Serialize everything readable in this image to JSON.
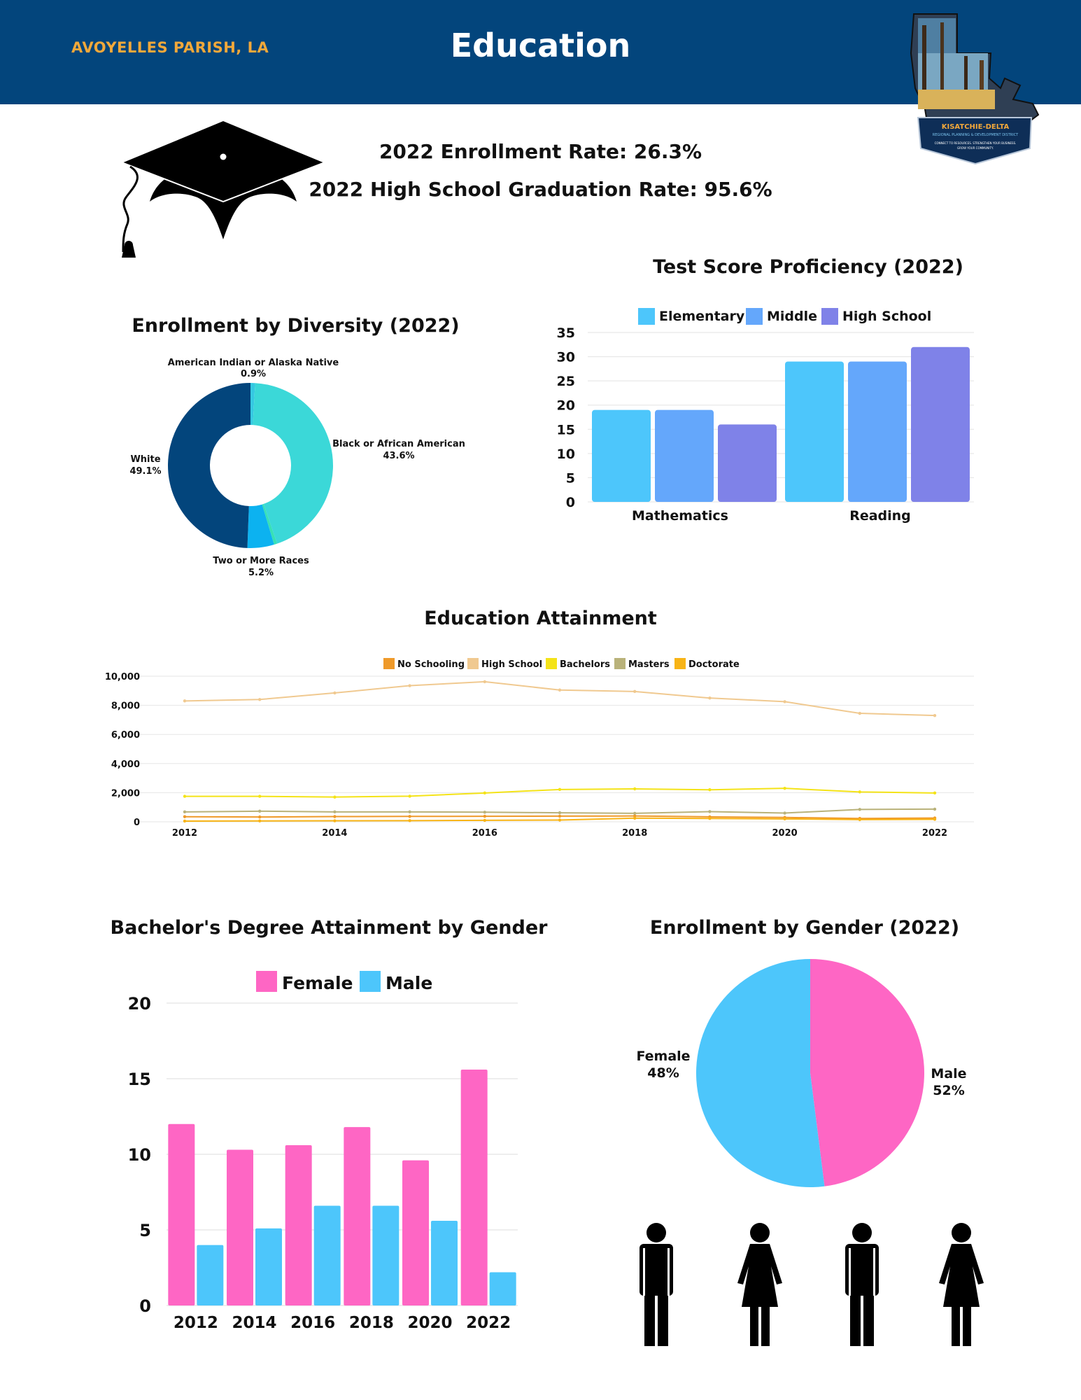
{
  "header": {
    "parish": "AVOYELLES PARISH, LA",
    "title": "Education"
  },
  "logo": {
    "line1": "KISATCHIE-DELTA",
    "line2": "REGIONAL PLANNING & DEVELOPMENT DISTRICT",
    "line3": "CONNECT TO RESOURCES. STRENGTHEN YOUR BUSINESS.",
    "line4": "GROW YOUR COMMUNITY."
  },
  "stats": {
    "enrollment": "2022 Enrollment Rate: 26.3%",
    "graduation": "2022 High School Graduation Rate: 95.6%"
  },
  "icons": {
    "cap": "graduation-cap-icon",
    "male": "male-person-icon",
    "female": "female-person-icon"
  },
  "chart_data": [
    {
      "id": "diversity",
      "type": "pie",
      "title": "Enrollment by Diversity (2022)",
      "slices": [
        {
          "label": "American Indian or Alaska Native",
          "pct_label": "0.9%",
          "value": 0.9,
          "color": "#35c9e2"
        },
        {
          "label": "Black or African American",
          "pct_label": "43.6%",
          "value": 43.6,
          "color": "#3bd8d8"
        },
        {
          "label": "",
          "pct_label": "",
          "value": 0.6,
          "color": "#37e0b6"
        },
        {
          "label": "Two or More Races",
          "pct_label": "5.2%",
          "value": 5.2,
          "color": "#0cb2f0"
        },
        {
          "label": "White",
          "pct_label": "49.1%",
          "value": 49.1,
          "color": "#03457c"
        }
      ]
    },
    {
      "id": "testscore",
      "type": "bar",
      "title": "Test Score Proficiency (2022)",
      "categories": [
        "Mathematics",
        "Reading"
      ],
      "series": [
        {
          "name": "Elementary",
          "values": [
            19,
            29
          ],
          "color": "#4dc6fb"
        },
        {
          "name": "Middle",
          "values": [
            19,
            29
          ],
          "color": "#64a7fb"
        },
        {
          "name": "High School",
          "values": [
            16,
            32
          ],
          "color": "#7f82e8"
        }
      ],
      "ylim": [
        0,
        35
      ],
      "yticks": [
        0,
        5,
        10,
        15,
        20,
        25,
        30,
        35
      ],
      "legend": "top",
      "grid": true
    },
    {
      "id": "attainment",
      "type": "line",
      "title": "Education Attainment",
      "x": [
        2012,
        2013,
        2014,
        2015,
        2016,
        2017,
        2018,
        2019,
        2020,
        2021,
        2022
      ],
      "xticks": [
        "2012",
        "2014",
        "2016",
        "2018",
        "2020",
        "2022"
      ],
      "series": [
        {
          "name": "No Schooling",
          "color": "#ef9a2a",
          "values": [
            350,
            330,
            360,
            370,
            380,
            390,
            400,
            340,
            300,
            230,
            260
          ]
        },
        {
          "name": "High School",
          "color": "#f0c990",
          "values": [
            8300,
            8400,
            8850,
            9350,
            9620,
            9050,
            8950,
            8500,
            8250,
            7450,
            7300
          ]
        },
        {
          "name": "Bachelors",
          "color": "#f4e318",
          "values": [
            1750,
            1750,
            1700,
            1760,
            1980,
            2220,
            2260,
            2200,
            2300,
            2050,
            1980
          ]
        },
        {
          "name": "Masters",
          "color": "#b9b27a",
          "values": [
            680,
            730,
            680,
            680,
            660,
            620,
            580,
            700,
            600,
            850,
            870
          ]
        },
        {
          "name": "Doctorate",
          "color": "#f8b416",
          "values": [
            50,
            60,
            70,
            80,
            100,
            120,
            250,
            230,
            200,
            150,
            170
          ]
        }
      ],
      "ylim": [
        0,
        10000
      ],
      "yticks": [
        "0",
        "2,000",
        "4,000",
        "6,000",
        "8,000",
        "10,000"
      ],
      "legend": "top",
      "grid": true
    },
    {
      "id": "bachelor_gender",
      "type": "bar",
      "title": "Bachelor's Degree Attainment by Gender",
      "categories": [
        "2012",
        "2014",
        "2016",
        "2018",
        "2020",
        "2022"
      ],
      "series": [
        {
          "name": "Female",
          "values": [
            12,
            10.3,
            10.6,
            11.8,
            9.6,
            15.6
          ],
          "color": "#fe66c4"
        },
        {
          "name": "Male",
          "values": [
            4.0,
            5.1,
            6.6,
            6.6,
            5.6,
            2.2
          ],
          "color": "#4dc6fb"
        }
      ],
      "ylim": [
        0,
        20
      ],
      "yticks": [
        0,
        5,
        10,
        15,
        20
      ],
      "legend": "top",
      "grid": true
    },
    {
      "id": "gender",
      "type": "pie",
      "title": "Enrollment by Gender (2022)",
      "slices": [
        {
          "label": "Female",
          "pct_label": "48%",
          "value": 48,
          "color": "#fe66c4"
        },
        {
          "label": "Male",
          "pct_label": "52%",
          "value": 52,
          "color": "#4dc6fb"
        }
      ]
    }
  ]
}
